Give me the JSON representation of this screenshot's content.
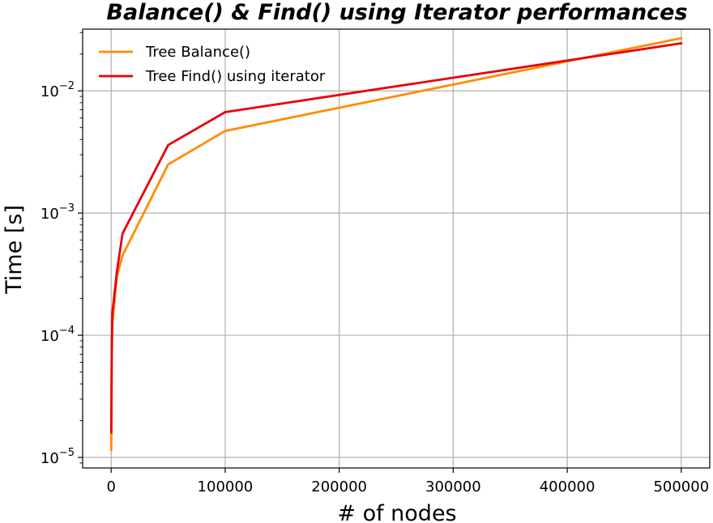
{
  "chart_data": {
    "type": "line",
    "title": "Balance() & Find() using Iterator performances",
    "xlabel": "# of nodes",
    "ylabel": "Time [s]",
    "xlim": [
      -25000,
      525000
    ],
    "ylim": [
      8.2e-06,
      0.032
    ],
    "yscale": "log",
    "grid": true,
    "legend_position": "top-left",
    "x_ticks": [
      0,
      100000,
      200000,
      300000,
      400000,
      500000
    ],
    "x_tick_labels": [
      "0",
      "100000",
      "200000",
      "300000",
      "400000",
      "500000"
    ],
    "y_ticks": [
      1e-05,
      0.0001,
      0.001,
      0.01
    ],
    "y_tick_labels": [
      {
        "base": "10",
        "exp": "−5"
      },
      {
        "base": "10",
        "exp": "−4"
      },
      {
        "base": "10",
        "exp": "−3"
      },
      {
        "base": "10",
        "exp": "−2"
      }
    ],
    "x": [
      100,
      500,
      1000,
      5000,
      10000,
      50000,
      100000,
      500000
    ],
    "series": [
      {
        "name": "Tree Balance()",
        "color": "#ff8c00",
        "values": [
          1.15e-05,
          6e-05,
          0.00012,
          0.0003,
          0.00045,
          0.0025,
          0.0047,
          0.027
        ]
      },
      {
        "name": "Tree Find() using iterator",
        "color": "#e8000b",
        "values": [
          1.6e-05,
          7e-05,
          0.00015,
          0.00033,
          0.00068,
          0.0036,
          0.0067,
          0.0245
        ]
      }
    ]
  }
}
